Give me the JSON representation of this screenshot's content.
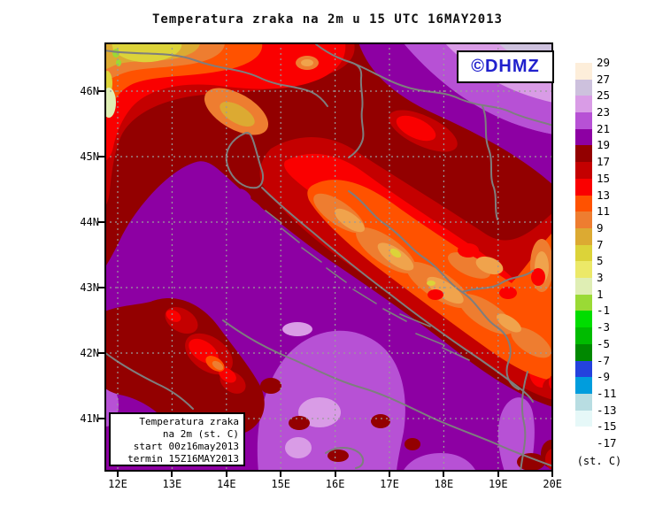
{
  "title": "Temperatura zraka na 2m u 15 UTC 16MAY2013",
  "logo": {
    "text": "©DHMZ"
  },
  "axes": {
    "lat_labels": [
      "46N",
      "45N",
      "44N",
      "43N",
      "42N",
      "41N"
    ],
    "lon_labels": [
      "12E",
      "13E",
      "14E",
      "15E",
      "16E",
      "17E",
      "18E",
      "19E",
      "20E"
    ]
  },
  "info_box": {
    "lines": [
      "Temperatura zraka",
      "na 2m (st. C)",
      "start 00z16may2013",
      "termin 15Z16MAY2013"
    ]
  },
  "legend": {
    "unit_label": "(st. C)",
    "values": [
      29,
      27,
      25,
      23,
      21,
      19,
      17,
      15,
      13,
      11,
      9,
      7,
      5,
      3,
      1,
      -1,
      -3,
      -5,
      -7,
      -9,
      -11,
      -13,
      -15,
      -17
    ],
    "colors": [
      "#fdeeda",
      "#cdc1dd",
      "#d99ce6",
      "#b751d5",
      "#8d00a3",
      "#930000",
      "#c40000",
      "#fa0000",
      "#ff5200",
      "#ee7d30",
      "#dcaa32",
      "#dcd339",
      "#ece968",
      "#dfeeb4",
      "#9ada35",
      "#00dd00",
      "#00bb00",
      "#008800",
      "#2442dd",
      "#009ddd",
      "#b8dde2",
      "#e6f8f8",
      "#ffffff"
    ]
  },
  "colors": {
    "logo_blue": "#2121cd",
    "border_gray": "#7e7e7e",
    "axis_black": "#000000"
  }
}
